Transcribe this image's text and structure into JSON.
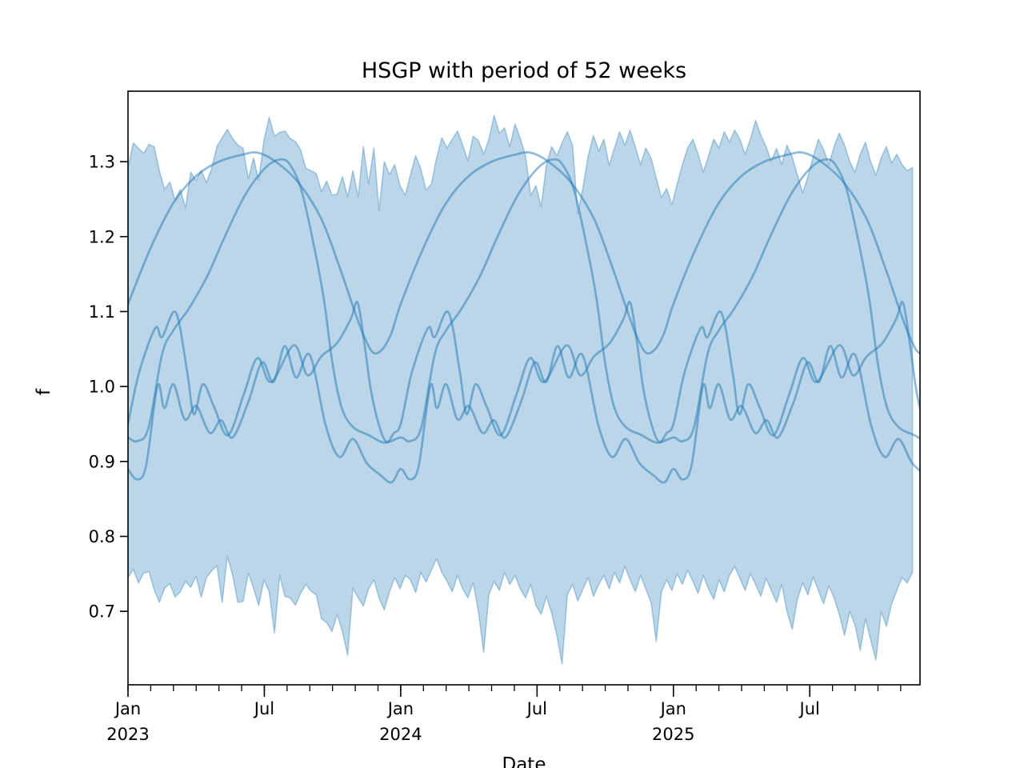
{
  "figure": {
    "title": "HSGP with period of 52 weeks",
    "xlabel": "Date",
    "ylabel": "f"
  },
  "chart_data": {
    "type": "line",
    "title": "HSGP with period of 52 weeks",
    "xlabel": "Date",
    "ylabel": "f",
    "x_unit": "months since 2023-01-01",
    "span_months": 34.85,
    "ylim": [
      0.602,
      1.394
    ],
    "grid": false,
    "legend": null,
    "accent_color": "#1f77b4",
    "band_fill_alpha": 0.3,
    "band_edge_alpha": 0.35,
    "line_alpha": 0.5,
    "y_ticks": [
      {
        "value": 0.7,
        "label": "0.7"
      },
      {
        "value": 0.8,
        "label": "0.8"
      },
      {
        "value": 0.9,
        "label": "0.9"
      },
      {
        "value": 1.0,
        "label": "1.0"
      },
      {
        "value": 1.1,
        "label": "1.1"
      },
      {
        "value": 1.2,
        "label": "1.2"
      },
      {
        "value": 1.3,
        "label": "1.3"
      }
    ],
    "x_major_ticks": [
      {
        "month": 0,
        "label": "Jan",
        "year": "2023"
      },
      {
        "month": 6,
        "label": "Jul",
        "year": ""
      },
      {
        "month": 12,
        "label": "Jan",
        "year": "2024"
      },
      {
        "month": 18,
        "label": "Jul",
        "year": ""
      },
      {
        "month": 24,
        "label": "Jan",
        "year": "2025"
      },
      {
        "month": 30,
        "label": "Jul",
        "year": ""
      }
    ],
    "x_minor_tick_every_months": 1,
    "band": {
      "name": "hdi-band",
      "points_per_week": 1,
      "top": [
        1.291,
        1.325,
        1.318,
        1.311,
        1.323,
        1.32,
        1.288,
        1.263,
        1.273,
        1.249,
        1.263,
        1.238,
        1.286,
        1.275,
        1.288,
        1.272,
        1.291,
        1.32,
        1.332,
        1.343,
        1.331,
        1.322,
        1.318,
        1.277,
        1.305,
        1.275,
        1.329,
        1.359,
        1.334,
        1.339,
        1.341,
        1.331,
        1.327,
        1.316,
        1.291,
        1.288,
        1.284,
        1.26,
        1.274,
        1.255,
        1.257,
        1.28,
        1.253,
        1.288,
        1.253,
        1.32,
        1.27,
        1.318,
        1.235,
        1.3,
        1.283,
        1.296,
        1.268,
        1.255,
        1.282,
        1.308,
        1.29,
        1.262,
        1.27,
        1.305,
        1.332,
        1.318,
        1.33,
        1.341,
        1.322,
        1.301,
        1.334,
        1.328,
        1.31,
        1.33,
        1.362,
        1.338,
        1.345,
        1.32,
        1.35,
        1.331,
        1.308,
        1.255,
        1.268,
        1.24,
        1.296,
        1.32,
        1.308,
        1.325,
        1.34,
        1.322,
        1.23,
        1.266,
        1.308,
        1.335,
        1.314,
        1.33,
        1.295,
        1.318,
        1.34,
        1.322,
        1.342,
        1.32,
        1.296,
        1.318,
        1.305,
        1.278,
        1.252,
        1.264,
        1.242,
        1.27,
        1.296,
        1.318,
        1.33,
        1.31,
        1.286,
        1.308,
        1.33,
        1.318,
        1.34,
        1.326,
        1.342,
        1.33,
        1.31,
        1.33,
        1.355,
        1.335,
        1.32,
        1.3,
        1.318,
        1.296,
        1.322,
        1.306,
        1.282,
        1.258,
        1.28,
        1.306,
        1.33,
        1.316,
        1.296,
        1.32,
        1.338,
        1.322,
        1.3,
        1.286,
        1.31,
        1.326,
        1.3,
        1.282,
        1.305,
        1.32,
        1.298,
        1.31,
        1.296,
        1.288,
        1.292
      ],
      "bottom": [
        0.745,
        0.756,
        0.738,
        0.751,
        0.753,
        0.729,
        0.712,
        0.731,
        0.737,
        0.719,
        0.726,
        0.74,
        0.732,
        0.747,
        0.719,
        0.745,
        0.754,
        0.761,
        0.712,
        0.774,
        0.748,
        0.712,
        0.713,
        0.751,
        0.731,
        0.708,
        0.742,
        0.726,
        0.671,
        0.748,
        0.72,
        0.718,
        0.708,
        0.724,
        0.736,
        0.727,
        0.722,
        0.69,
        0.685,
        0.673,
        0.696,
        0.673,
        0.641,
        0.731,
        0.718,
        0.707,
        0.73,
        0.742,
        0.718,
        0.702,
        0.726,
        0.745,
        0.73,
        0.748,
        0.742,
        0.725,
        0.752,
        0.739,
        0.755,
        0.77,
        0.752,
        0.74,
        0.726,
        0.748,
        0.73,
        0.718,
        0.738,
        0.7,
        0.645,
        0.722,
        0.74,
        0.728,
        0.752,
        0.736,
        0.748,
        0.73,
        0.718,
        0.736,
        0.708,
        0.696,
        0.72,
        0.698,
        0.668,
        0.63,
        0.722,
        0.736,
        0.714,
        0.73,
        0.745,
        0.72,
        0.736,
        0.748,
        0.73,
        0.752,
        0.738,
        0.76,
        0.742,
        0.726,
        0.748,
        0.73,
        0.712,
        0.66,
        0.726,
        0.742,
        0.728,
        0.75,
        0.736,
        0.755,
        0.74,
        0.724,
        0.748,
        0.73,
        0.716,
        0.742,
        0.726,
        0.748,
        0.76,
        0.744,
        0.728,
        0.75,
        0.736,
        0.72,
        0.744,
        0.728,
        0.712,
        0.736,
        0.7,
        0.676,
        0.716,
        0.738,
        0.722,
        0.746,
        0.728,
        0.71,
        0.734,
        0.718,
        0.696,
        0.668,
        0.7,
        0.682,
        0.648,
        0.69,
        0.662,
        0.635,
        0.7,
        0.68,
        0.71,
        0.728,
        0.745,
        0.738,
        0.752
      ]
    },
    "series": [
      {
        "name": "posterior-sample-1",
        "period_months": 12,
        "pattern_months": [
          0,
          1,
          2,
          3,
          4,
          5,
          5.7,
          6.5,
          7.5,
          8.5,
          9.3,
          10,
          10.4,
          10.8,
          11.2,
          11.6,
          12
        ],
        "pattern_values": [
          1.11,
          1.185,
          1.245,
          1.281,
          1.3,
          1.309,
          1.312,
          1.3,
          1.272,
          1.224,
          1.16,
          1.098,
          1.066,
          1.045,
          1.05,
          1.072,
          1.11
        ]
      },
      {
        "name": "posterior-sample-2",
        "period_months": 12,
        "pattern_months": [
          0,
          0.4,
          0.9,
          1.5,
          2,
          2.7,
          3.5,
          4.2,
          5,
          5.6,
          6.2,
          6.7,
          7.1,
          7.6,
          8.1,
          8.6,
          9,
          9.4,
          9.9,
          10.6,
          11.3,
          12
        ],
        "pattern_values": [
          0.932,
          0.927,
          0.945,
          1.043,
          1.075,
          1.105,
          1.148,
          1.196,
          1.247,
          1.276,
          1.296,
          1.303,
          1.297,
          1.265,
          1.2,
          1.12,
          1.03,
          0.972,
          0.946,
          0.935,
          0.925,
          0.932
        ]
      },
      {
        "name": "posterior-sample-3",
        "period_months": 12,
        "pattern_months": [
          0,
          0.5,
          1.2,
          1.5,
          2.1,
          2.6,
          2.9,
          3.3,
          3.8,
          4.4,
          5.1,
          5.7,
          6.3,
          7.3,
          7.9,
          8.5,
          9.2,
          9.8,
          10.1,
          10.4,
          10.7,
          11.1,
          11.4,
          11.7,
          12
        ],
        "pattern_values": [
          0.95,
          1.02,
          1.078,
          1.066,
          1.099,
          1.02,
          0.963,
          1.003,
          0.972,
          0.935,
          0.99,
          1.038,
          1.006,
          1.055,
          1.015,
          1.04,
          1.058,
          1.09,
          1.112,
          1.058,
          0.993,
          0.943,
          0.926,
          0.938,
          0.95
        ]
      },
      {
        "name": "posterior-sample-4",
        "period_months": 12,
        "pattern_months": [
          0,
          0.4,
          0.8,
          1.3,
          1.6,
          2,
          2.5,
          3,
          3.6,
          4.1,
          4.6,
          5.3,
          5.9,
          6.4,
          6.9,
          7.4,
          8,
          8.7,
          9.3,
          9.9,
          10.5,
          11.1,
          11.6,
          12
        ],
        "pattern_values": [
          0.89,
          0.876,
          0.895,
          1.001,
          0.971,
          1.003,
          0.956,
          0.974,
          0.938,
          0.955,
          0.932,
          0.98,
          1.032,
          1.006,
          1.054,
          1.012,
          1.042,
          0.948,
          0.906,
          0.93,
          0.898,
          0.882,
          0.872,
          0.89
        ]
      }
    ]
  }
}
